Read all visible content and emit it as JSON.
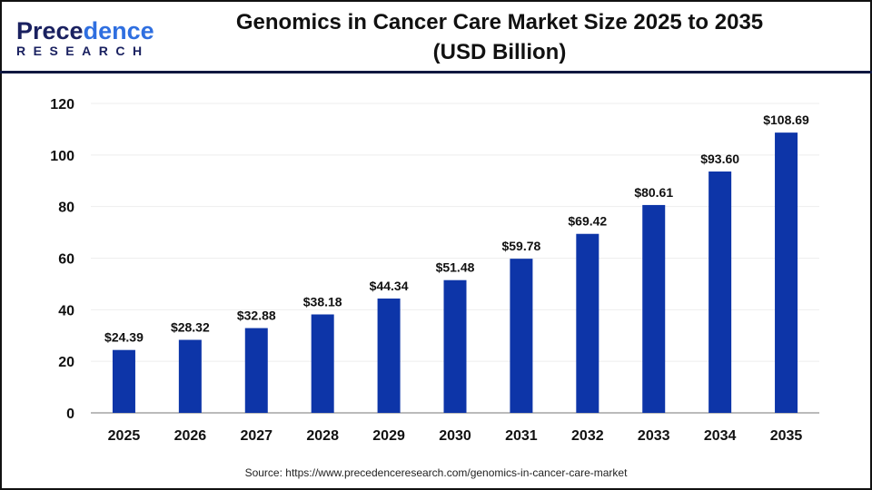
{
  "logo": {
    "line1_a": "Prece",
    "line1_b": "dence",
    "line2": "RESEARCH"
  },
  "title_line1": "Genomics in Cancer Care Market Size 2025 to 2035",
  "title_line2": "(USD Billion)",
  "source": "Source: https://www.precedenceresearch.com/genomics-in-cancer-care-market",
  "chart_data": {
    "type": "bar",
    "title": "Genomics in Cancer Care Market Size 2025 to 2035 (USD Billion)",
    "categories": [
      "2025",
      "2026",
      "2027",
      "2028",
      "2029",
      "2030",
      "2031",
      "2032",
      "2033",
      "2034",
      "2035"
    ],
    "values": [
      24.39,
      28.32,
      32.88,
      38.18,
      44.34,
      51.48,
      59.78,
      69.42,
      80.61,
      93.6,
      108.69
    ],
    "data_labels": [
      "$24.39",
      "$28.32",
      "$32.88",
      "$38.18",
      "$44.34",
      "$51.48",
      "$59.78",
      "$69.42",
      "$80.61",
      "$93.60",
      "$108.69"
    ],
    "ylim": [
      0,
      120
    ],
    "yticks": [
      0,
      20,
      40,
      60,
      80,
      100,
      120
    ],
    "grid": true,
    "bar_color": "#0d35a8"
  }
}
